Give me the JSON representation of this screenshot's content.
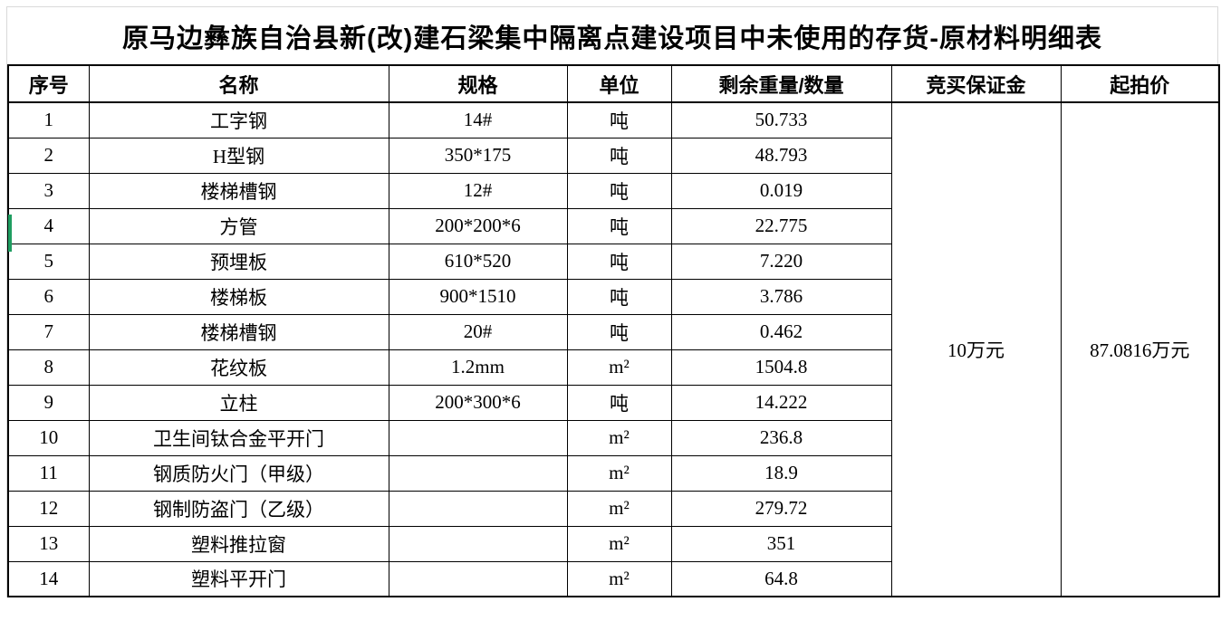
{
  "title": "原马边彝族自治县新(改)建石梁集中隔离点建设项目中未使用的存货-原材料明细表",
  "table": {
    "columns": [
      "序号",
      "名称",
      "规格",
      "单位",
      "剩余重量/数量",
      "竞买保证金",
      "起拍价"
    ],
    "rows": [
      {
        "no": "1",
        "name": "工字钢",
        "spec": "14#",
        "unit": "吨",
        "qty": "50.733"
      },
      {
        "no": "2",
        "name": "H型钢",
        "spec": "350*175",
        "unit": "吨",
        "qty": "48.793"
      },
      {
        "no": "3",
        "name": "楼梯槽钢",
        "spec": "12#",
        "unit": "吨",
        "qty": "0.019"
      },
      {
        "no": "4",
        "name": "方管",
        "spec": "200*200*6",
        "unit": "吨",
        "qty": "22.775"
      },
      {
        "no": "5",
        "name": "预埋板",
        "spec": "610*520",
        "unit": "吨",
        "qty": "7.220"
      },
      {
        "no": "6",
        "name": "楼梯板",
        "spec": "900*1510",
        "unit": "吨",
        "qty": "3.786"
      },
      {
        "no": "7",
        "name": "楼梯槽钢",
        "spec": "20#",
        "unit": "吨",
        "qty": "0.462"
      },
      {
        "no": "8",
        "name": "花纹板",
        "spec": "1.2mm",
        "unit": "m²",
        "qty": "1504.8"
      },
      {
        "no": "9",
        "name": "立柱",
        "spec": "200*300*6",
        "unit": "吨",
        "qty": "14.222"
      },
      {
        "no": "10",
        "name": "卫生间钛合金平开门",
        "spec": "",
        "unit": "m²",
        "qty": "236.8"
      },
      {
        "no": "11",
        "name": "钢质防火门（甲级）",
        "spec": "",
        "unit": "m²",
        "qty": "18.9"
      },
      {
        "no": "12",
        "name": "钢制防盗门（乙级）",
        "spec": "",
        "unit": "m²",
        "qty": "279.72"
      },
      {
        "no": "13",
        "name": "塑料推拉窗",
        "spec": "",
        "unit": "m²",
        "qty": "351"
      },
      {
        "no": "14",
        "name": "塑料平开门",
        "spec": "",
        "unit": "m²",
        "qty": "64.8"
      }
    ],
    "merged": {
      "deposit": "10万元",
      "starting_price": "87.0816万元"
    }
  },
  "colors": {
    "grid_black": "#000000",
    "grid_faint": "#d9d9d9",
    "selection_green": "#1f9d61"
  }
}
